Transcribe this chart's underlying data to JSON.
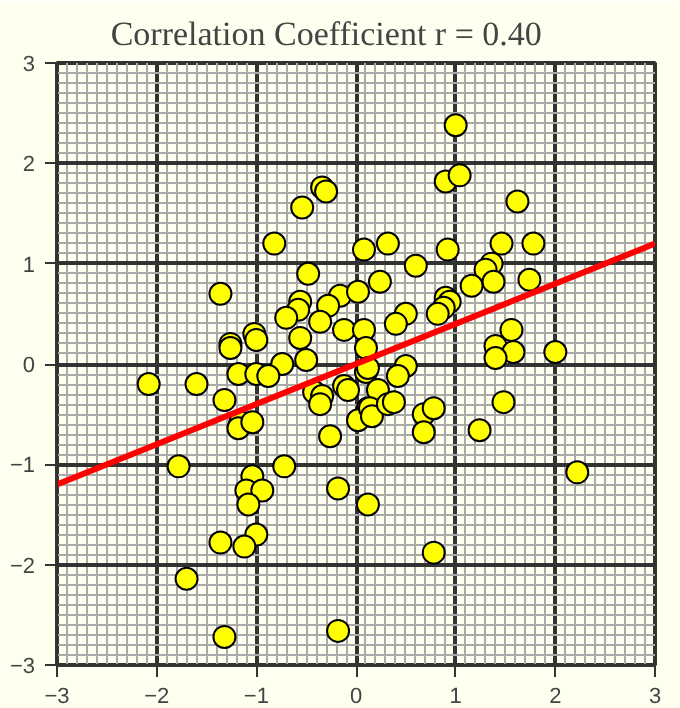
{
  "chart_data": {
    "type": "scatter",
    "title": "Correlation Coefficient    r =     0.40",
    "xlim": [
      -3,
      3
    ],
    "ylim": [
      -3,
      3
    ],
    "xticks": [
      -3,
      -2,
      -1,
      0,
      1,
      2,
      3
    ],
    "yticks": [
      -3,
      -2,
      -1,
      0,
      1,
      2,
      3
    ],
    "grid": true,
    "marker": "circle",
    "series": [
      {
        "color": "#ffff00",
        "x": [
          1.0,
          0.9,
          1.04,
          1.62,
          -0.34,
          -0.3,
          -0.54,
          -0.82,
          0.08,
          -0.48,
          -1.36,
          -0.16,
          0.02,
          -0.28,
          -0.56,
          -0.58,
          -0.7,
          -0.36,
          -0.12,
          0.08,
          -1.02,
          -1.0,
          -1.26,
          -1.26,
          -0.56,
          -0.74,
          -0.5,
          0.1,
          -1.18,
          -1.0,
          -0.88,
          0.1,
          0.32,
          0.92,
          1.46,
          1.78,
          0.6,
          1.36,
          1.3,
          1.16,
          1.38,
          1.74,
          0.24,
          0.9,
          0.94,
          0.88,
          0.82,
          0.5,
          0.4,
          1.56,
          1.4,
          1.58,
          1.4,
          2.0,
          0.12,
          0.5,
          0.42,
          -2.08,
          -1.6,
          -1.32,
          -1.16,
          -1.18,
          -1.04,
          -0.42,
          -0.34,
          -0.36,
          -0.12,
          -0.08,
          0.12,
          0.02,
          -0.26,
          -1.78,
          -0.72,
          -1.04,
          -1.1,
          -0.94,
          -1.08,
          -0.18,
          0.12,
          -1.36,
          -1.0,
          -1.12,
          -1.7,
          -1.32,
          -0.18,
          0.22,
          0.14,
          0.16,
          0.32,
          0.38,
          0.68,
          0.78,
          0.68,
          1.48,
          1.24,
          2.22,
          0.78
        ],
        "values": [
          2.38,
          1.82,
          1.88,
          1.62,
          1.76,
          1.72,
          1.56,
          1.2,
          1.14,
          0.9,
          0.7,
          0.68,
          0.72,
          0.58,
          0.62,
          0.54,
          0.46,
          0.42,
          0.34,
          0.34,
          0.3,
          0.24,
          0.2,
          0.16,
          0.26,
          0.0,
          0.04,
          0.16,
          -0.1,
          -0.1,
          -0.12,
          -0.08,
          1.2,
          1.14,
          1.2,
          1.2,
          0.98,
          1.0,
          0.94,
          0.78,
          0.82,
          0.84,
          0.82,
          0.66,
          0.62,
          0.56,
          0.5,
          0.5,
          0.4,
          0.34,
          0.18,
          0.12,
          0.06,
          0.12,
          -0.04,
          -0.02,
          -0.12,
          -0.2,
          -0.2,
          -0.36,
          -0.58,
          -0.64,
          -0.58,
          -0.28,
          -0.32,
          -0.4,
          -0.22,
          -0.26,
          -0.44,
          -0.56,
          -0.72,
          -1.02,
          -1.02,
          -1.12,
          -1.26,
          -1.26,
          -1.4,
          -1.24,
          -1.4,
          -1.78,
          -1.7,
          -1.82,
          -2.14,
          -2.72,
          -2.66,
          -0.26,
          -0.44,
          -0.52,
          -0.4,
          -0.38,
          -0.5,
          -0.44,
          -0.68,
          -0.38,
          -0.66,
          -1.08,
          -1.88
        ]
      },
      {
        "type": "line",
        "color": "#ff0000",
        "x": [
          -3,
          3
        ],
        "values": [
          -1.2,
          1.2
        ],
        "marker": "none"
      }
    ]
  }
}
